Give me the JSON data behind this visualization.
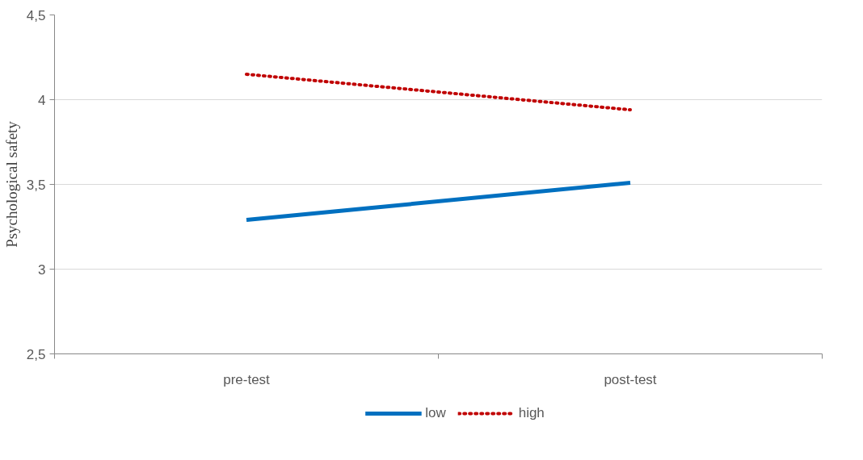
{
  "chart_data": {
    "type": "line",
    "ylabel": "Psychological safety",
    "categories": [
      "pre-test",
      "post-test"
    ],
    "series": [
      {
        "name": "low",
        "color": "#0070c0",
        "values": [
          3.29,
          3.51
        ],
        "line_style": "solid"
      },
      {
        "name": "high",
        "color": "#c00000",
        "values": [
          4.15,
          3.94
        ],
        "line_style": "dotted"
      }
    ],
    "ylim": [
      2.5,
      4.5
    ],
    "yticks": [
      {
        "value": 2.5,
        "label": "2,5"
      },
      3,
      {
        "value": 3.5,
        "label": "3,5"
      },
      4,
      {
        "value": 4.5,
        "label": "4,5"
      }
    ],
    "grid": "y",
    "legend": "bottom",
    "marker": "none"
  }
}
